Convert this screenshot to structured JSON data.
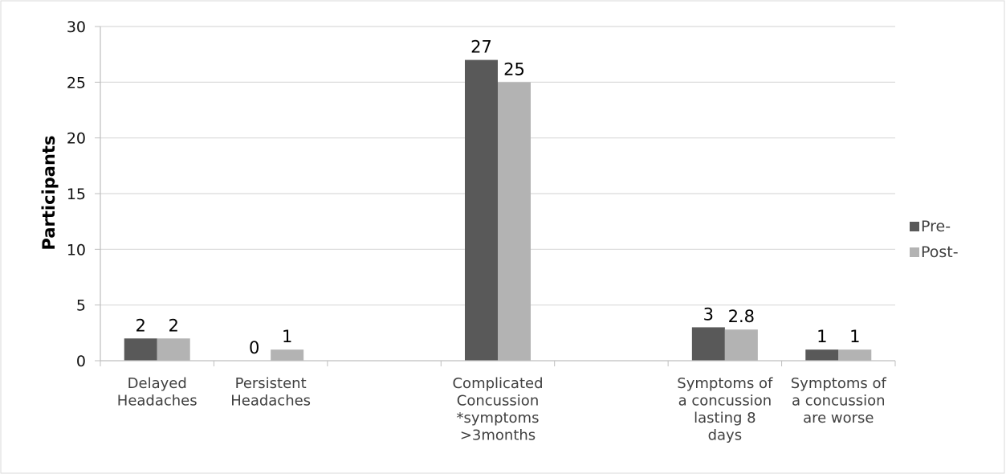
{
  "chart_data": {
    "type": "bar",
    "categories": [
      [
        "Delayed",
        "Headaches"
      ],
      [
        "Persistent",
        "Headaches"
      ],
      [
        "Complicated",
        "Concussion",
        "*symptoms",
        ">3months"
      ],
      [
        "Symptoms of",
        "a concussion",
        "lasting 8",
        "days"
      ],
      [
        "Symptoms of",
        "a concussion",
        "are worse"
      ]
    ],
    "series": [
      {
        "name": "Pre-",
        "values": [
          2,
          0,
          27,
          3,
          1
        ],
        "labels": [
          "2",
          "0",
          "27",
          "3",
          "1"
        ],
        "color": "#595959"
      },
      {
        "name": "Post-",
        "values": [
          2,
          1,
          25,
          2.8,
          1
        ],
        "labels": [
          "2",
          "1",
          "25",
          "2.8",
          "1"
        ],
        "color": "#b3b3b3"
      }
    ],
    "ylabel": "Participants",
    "ylim": [
      0,
      30
    ],
    "yticks": [
      0,
      5,
      10,
      15,
      20,
      25,
      30
    ],
    "grid": true,
    "legend_position": "right",
    "frame_color": "#d9d9d9",
    "grid_color": "#d9d9d9"
  }
}
